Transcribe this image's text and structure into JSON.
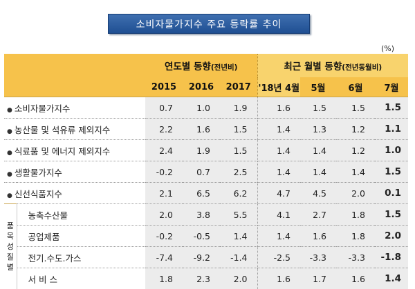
{
  "title": "소비자물가지수 주요 등락률 추이",
  "unit": "(%)",
  "header": {
    "group1": "연도별 동향",
    "group1_sub": "(전년비)",
    "group2": "최근 월별 동향",
    "group2_sub": "(전년동월비)",
    "columns": [
      "2015",
      "2016",
      "2017",
      "'18년 4월",
      "5월",
      "6월",
      "7월"
    ]
  },
  "rows": [
    {
      "label": "소비자물가지수",
      "values": [
        "0.7",
        "1.0",
        "1.9",
        "1.6",
        "1.5",
        "1.5",
        "1.5"
      ]
    },
    {
      "label": "농산물 및 석유류 제외지수",
      "values": [
        "2.2",
        "1.6",
        "1.5",
        "1.4",
        "1.3",
        "1.2",
        "1.1"
      ]
    },
    {
      "label": "식료품 및 에너지 제외지수",
      "values": [
        "2.4",
        "1.9",
        "1.5",
        "1.4",
        "1.4",
        "1.2",
        "1.0"
      ]
    },
    {
      "label": "생활물가지수",
      "values": [
        "-0.2",
        "0.7",
        "2.5",
        "1.4",
        "1.4",
        "1.4",
        "1.5"
      ]
    },
    {
      "label": "신선식품지수",
      "values": [
        "2.1",
        "6.5",
        "6.2",
        "4.7",
        "4.5",
        "2.0",
        "0.1"
      ]
    }
  ],
  "group_label": "품목성질별",
  "group_rows": [
    {
      "label": "농축수산물",
      "values": [
        "2.0",
        "3.8",
        "5.5",
        "4.1",
        "2.7",
        "1.8",
        "1.5"
      ]
    },
    {
      "label": "공업제품",
      "values": [
        "-0.2",
        "-0.5",
        "1.4",
        "1.4",
        "1.6",
        "1.8",
        "2.0"
      ]
    },
    {
      "label": "전기.수도.가스",
      "values": [
        "-7.4",
        "-9.2",
        "-1.4",
        "-2.5",
        "-3.3",
        "-3.3",
        "-1.8"
      ]
    },
    {
      "label": "서 비 스",
      "values": [
        "1.8",
        "2.3",
        "2.0",
        "1.6",
        "1.7",
        "1.6",
        "1.4"
      ]
    }
  ]
}
